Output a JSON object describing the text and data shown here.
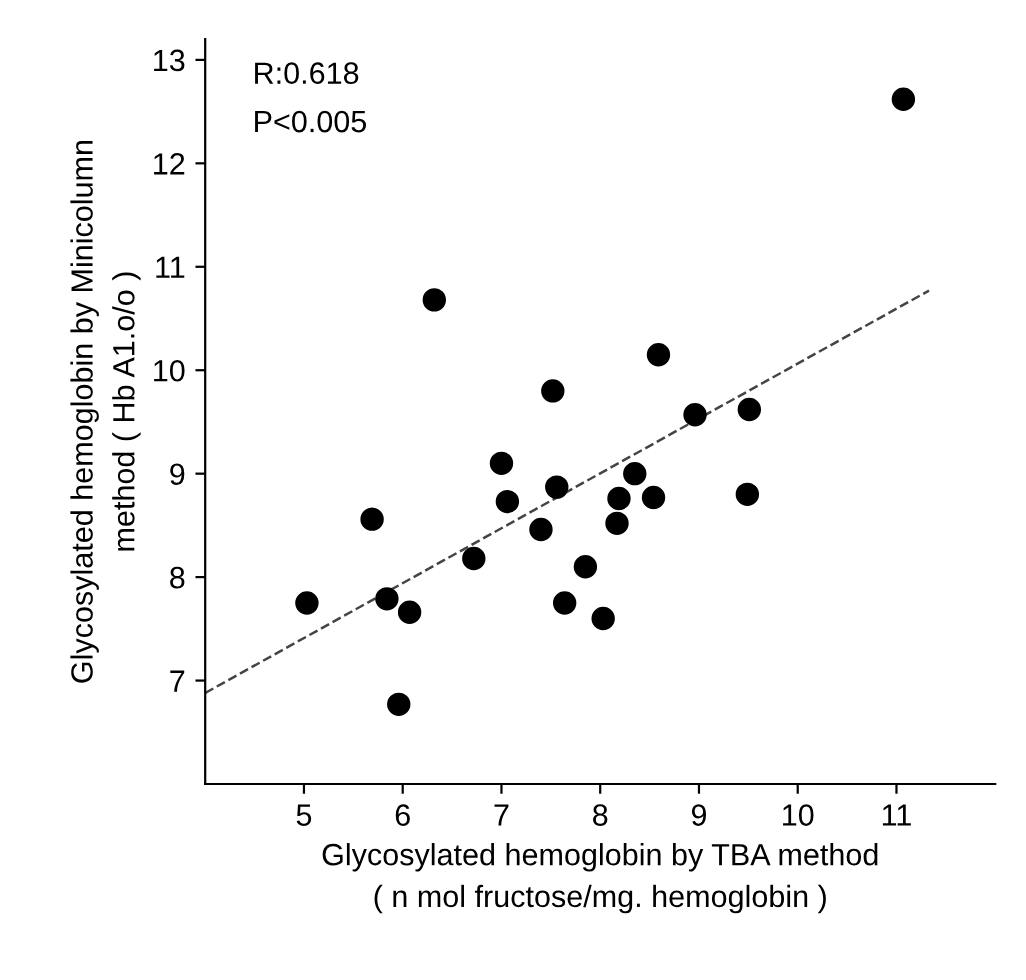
{
  "chart_data": {
    "type": "scatter",
    "xlabel": "Glycosylated hemoglobin by TBA method\n( n mol fructose/mg. hemoglobin )",
    "ylabel": "Glycosylated hemoglobin by Minicolumn\nmethod ( Hb A1.o/o )",
    "annotations": [
      "R:0.618",
      "P<0.005"
    ],
    "xlim": [
      4,
      12
    ],
    "ylim": [
      6,
      13.2
    ],
    "xticks": [
      5,
      6,
      7,
      8,
      9,
      10,
      11
    ],
    "yticks": [
      7,
      8,
      9,
      10,
      11,
      12,
      13
    ],
    "grid": false,
    "legend": false,
    "series": [
      {
        "color": "#000000",
        "marker": "circle",
        "x": [
          11.07,
          6.32,
          8.59,
          7.52,
          8.96,
          9.51,
          7.0,
          8.35,
          7.06,
          7.56,
          8.19,
          8.54,
          9.49,
          5.69,
          7.4,
          8.17,
          6.72,
          7.85,
          5.03,
          5.84,
          6.07,
          7.64,
          8.03,
          5.96
        ],
        "values": [
          12.62,
          10.68,
          10.15,
          9.8,
          9.57,
          9.62,
          9.1,
          9.0,
          8.73,
          8.87,
          8.76,
          8.77,
          8.8,
          8.56,
          8.46,
          8.52,
          8.18,
          8.1,
          7.75,
          7.79,
          7.66,
          7.75,
          7.6,
          6.77
        ]
      },
      {
        "type": "line",
        "color": "#444444",
        "line_style": "dashed",
        "x": [
          4,
          11.33
        ],
        "values": [
          6.88,
          10.77
        ]
      }
    ]
  }
}
